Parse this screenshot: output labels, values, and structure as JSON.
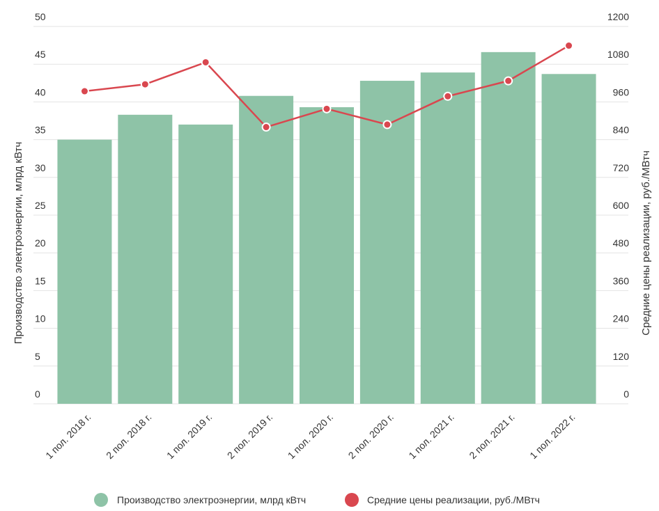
{
  "chart_data": {
    "type": "bar",
    "categories": [
      "1 пол. 2018 г.",
      "2 пол. 2018 г.",
      "1 пол. 2019 г.",
      "2 пол. 2019 г.",
      "1 пол. 2020 г.",
      "2 пол. 2020 г.",
      "1 пол. 2021 г.",
      "2 пол. 2021 г.",
      "1 пол. 2022 г."
    ],
    "series": [
      {
        "name": "Производство электроэнергии, млрд кВтч",
        "type": "bar",
        "axis": "left",
        "color": "#8ec3a7",
        "values": [
          35.0,
          38.3,
          37.0,
          40.8,
          39.3,
          42.8,
          43.9,
          46.6,
          43.7
        ]
      },
      {
        "name": "Средние цены реализации, руб./МВтч",
        "type": "line",
        "axis": "right",
        "color": "#d9474f",
        "values": [
          994,
          1016,
          1086,
          880,
          938,
          888,
          978,
          1027,
          1139
        ]
      }
    ],
    "yleft": {
      "label": "Производство электроэнергии, млрд кВтч",
      "min": 0,
      "max": 50,
      "ticks": [
        0,
        5,
        10,
        15,
        20,
        25,
        30,
        35,
        40,
        45,
        50
      ]
    },
    "yright": {
      "label": "Средние цены реализации, руб./МВтч",
      "min": 0,
      "max": 1200,
      "ticks": [
        0,
        120,
        240,
        360,
        480,
        600,
        720,
        840,
        960,
        1080,
        1200
      ]
    },
    "grid": true,
    "legend_position": "bottom"
  }
}
